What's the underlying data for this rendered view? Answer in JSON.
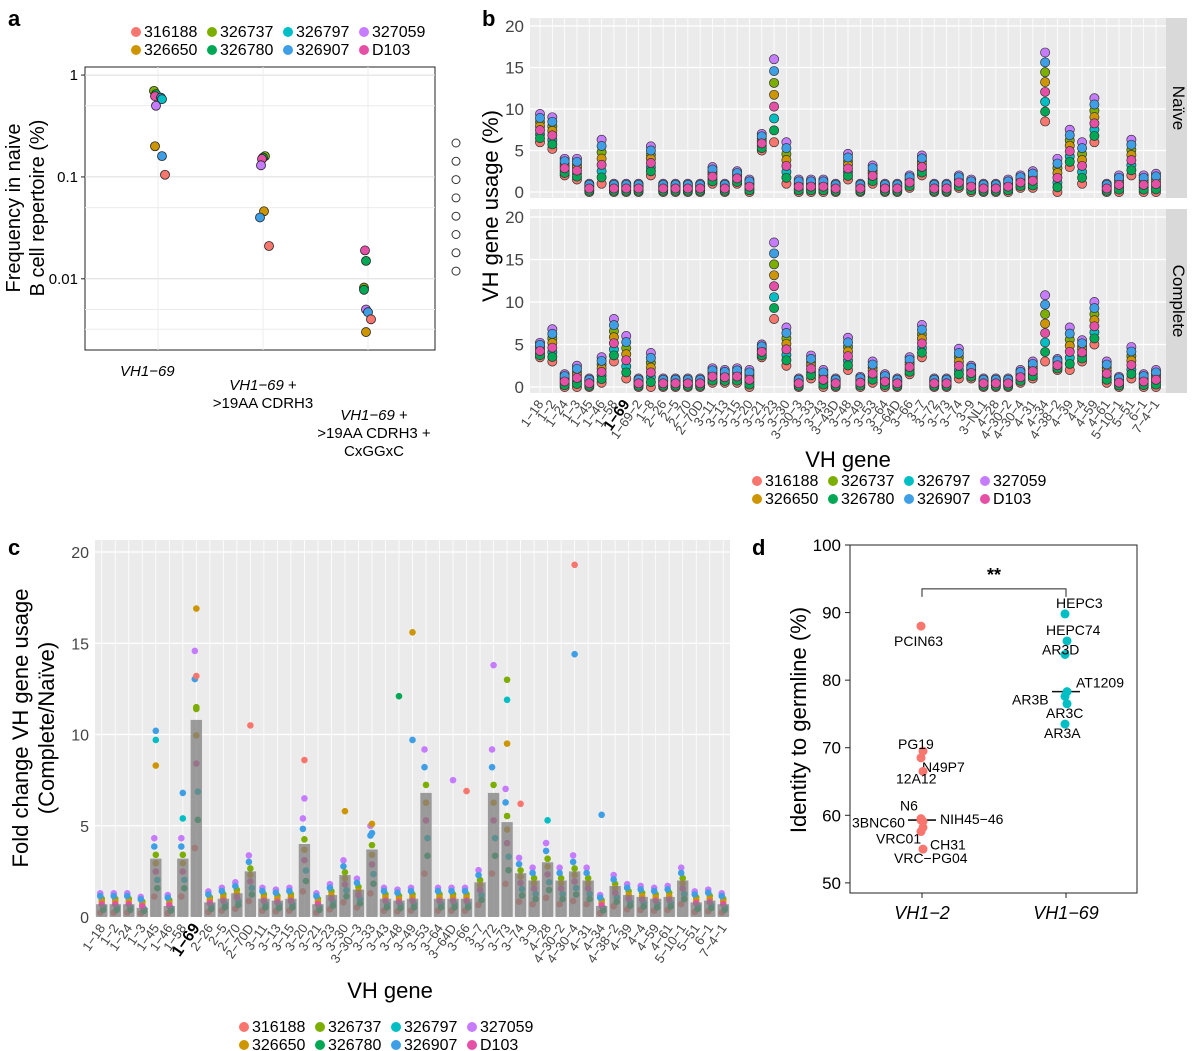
{
  "panel_labels": {
    "a": "a",
    "b": "b",
    "c": "c",
    "d": "d"
  },
  "donors": [
    {
      "id": "316188",
      "color": "#F8766D"
    },
    {
      "id": "326737",
      "color": "#7CAE00"
    },
    {
      "id": "326797",
      "color": "#00BFC4"
    },
    {
      "id": "327059",
      "color": "#C77CFF"
    },
    {
      "id": "326650",
      "color": "#CD9600"
    },
    {
      "id": "326780",
      "color": "#00A855"
    },
    {
      "id": "326907",
      "color": "#3E9FE6"
    },
    {
      "id": "D103",
      "color": "#E64FA6"
    }
  ],
  "chart_data": [
    {
      "panel": "a",
      "type": "scatter",
      "yscale": "log",
      "ylabel_line1": "Frequency in naive",
      "ylabel_line2": "B cell repertoire (%)",
      "ylim": [
        0.002,
        1.2
      ],
      "yticks": [
        {
          "v": 1,
          "label": "1"
        },
        {
          "v": 0.1,
          "label": "0.1"
        },
        {
          "v": 0.01,
          "label": "0.01"
        }
      ],
      "categories": [
        {
          "lines": [
            {
              "italic": "VH1−69",
              "rest": ""
            }
          ]
        },
        {
          "lines": [
            {
              "italic": "VH1−69",
              "rest": " +"
            },
            {
              "italic": "",
              "rest": ">19AA CDRH3"
            }
          ]
        },
        {
          "lines": [
            {
              "italic": "VH1−69",
              "rest": " +"
            },
            {
              "italic": "",
              "rest": ">19AA CDRH3 +"
            },
            {
              "italic": "",
              "rest": "CxGGxC"
            }
          ]
        }
      ],
      "points": [
        {
          "cat": 0,
          "dx": -4,
          "y": 0.7,
          "donor": "326737"
        },
        {
          "cat": 0,
          "dx": -2,
          "y": 0.65,
          "donor": "326780"
        },
        {
          "cat": 0,
          "dx": -3,
          "y": 0.62,
          "donor": "D103"
        },
        {
          "cat": 0,
          "dx": 3,
          "y": 0.6,
          "donor": "326907"
        },
        {
          "cat": 0,
          "dx": 4,
          "y": 0.58,
          "donor": "326797"
        },
        {
          "cat": 0,
          "dx": -2,
          "y": 0.5,
          "donor": "327059"
        },
        {
          "cat": 0,
          "dx": -3,
          "y": 0.2,
          "donor": "326650"
        },
        {
          "cat": 0,
          "dx": 4,
          "y": 0.16,
          "donor": "326907"
        },
        {
          "cat": 0,
          "dx": 7,
          "y": 0.105,
          "donor": "316188"
        },
        {
          "cat": 1,
          "dx": 2,
          "y": 0.16,
          "donor": "326737"
        },
        {
          "cat": 1,
          "dx": 0,
          "y": 0.155,
          "donor": "326780"
        },
        {
          "cat": 1,
          "dx": -1,
          "y": 0.15,
          "donor": "D103"
        },
        {
          "cat": 1,
          "dx": -2,
          "y": 0.13,
          "donor": "327059"
        },
        {
          "cat": 1,
          "dx": 1,
          "y": 0.046,
          "donor": "326650"
        },
        {
          "cat": 1,
          "dx": -3,
          "y": 0.04,
          "donor": "326907"
        },
        {
          "cat": 1,
          "dx": 6,
          "y": 0.021,
          "donor": "316188"
        },
        {
          "cat": 2,
          "dx": -3,
          "y": 0.019,
          "donor": "D103"
        },
        {
          "cat": 2,
          "dx": -2,
          "y": 0.015,
          "donor": "326780"
        },
        {
          "cat": 2,
          "dx": -4,
          "y": 0.0082,
          "donor": "326737"
        },
        {
          "cat": 2,
          "dx": -4,
          "y": 0.0078,
          "donor": "326780"
        },
        {
          "cat": 2,
          "dx": -2,
          "y": 0.005,
          "donor": "327059"
        },
        {
          "cat": 2,
          "dx": 0,
          "y": 0.0047,
          "donor": "326907"
        },
        {
          "cat": 2,
          "dx": 3,
          "y": 0.004,
          "donor": "316188"
        },
        {
          "cat": 2,
          "dx": -2,
          "y": 0.003,
          "donor": "326650"
        }
      ]
    },
    {
      "panel": "b",
      "type": "scatter",
      "ylabel": "VH gene usage (%)",
      "xlabel": "VH gene",
      "ylim": [
        0,
        20
      ],
      "yticks": [
        0,
        5,
        10,
        15,
        20
      ],
      "facets": [
        "Naïve",
        "Complete"
      ],
      "genes": [
        "1−18",
        "1−2",
        "1−24",
        "1−3",
        "1−45",
        "1−46",
        "1−58",
        "1−69",
        "1−69−2",
        "1−8",
        "2−26",
        "2−5",
        "2−70",
        "2−70D",
        "3−11",
        "3−13",
        "3−15",
        "3−20",
        "3−21",
        "3−23",
        "3−30",
        "3−30−3",
        "3−33",
        "3−43",
        "3−43D",
        "3−48",
        "3−49",
        "3−53",
        "3−64",
        "3−64D",
        "3−66",
        "3−7",
        "3−72",
        "3−73",
        "3−74",
        "3−9",
        "3−NL1",
        "4−28",
        "4−30−2",
        "4−30−4",
        "4−31",
        "4−34",
        "4−38−2",
        "4−39",
        "4−4",
        "4−59",
        "4−61",
        "5−10−1",
        "5−51",
        "6−1",
        "7−4−1"
      ],
      "bold_gene": "1−69",
      "naive": [
        [
          6,
          9.4
        ],
        [
          5.2,
          9
        ],
        [
          2,
          4
        ],
        [
          1.5,
          4
        ],
        [
          0,
          1
        ],
        [
          1,
          6.3
        ],
        [
          0,
          1
        ],
        [
          0,
          1
        ],
        [
          0,
          1
        ],
        [
          2,
          5.5
        ],
        [
          0,
          1
        ],
        [
          0,
          1
        ],
        [
          0,
          1
        ],
        [
          0,
          1
        ],
        [
          1,
          3
        ],
        [
          0,
          1
        ],
        [
          1,
          2.5
        ],
        [
          0,
          1.5
        ],
        [
          5,
          7
        ],
        [
          6,
          16
        ],
        [
          1,
          6
        ],
        [
          0,
          1.5
        ],
        [
          0,
          1.5
        ],
        [
          0,
          1.5
        ],
        [
          0,
          1
        ],
        [
          1.5,
          4.6
        ],
        [
          0,
          1
        ],
        [
          1,
          3.2
        ],
        [
          0,
          1
        ],
        [
          0,
          1
        ],
        [
          0.5,
          2
        ],
        [
          2,
          4.4
        ],
        [
          0,
          1
        ],
        [
          0,
          1
        ],
        [
          0.5,
          2
        ],
        [
          0,
          1.5
        ],
        [
          0,
          1
        ],
        [
          0,
          1
        ],
        [
          0,
          1.5
        ],
        [
          0.5,
          2
        ],
        [
          0.5,
          2.5
        ],
        [
          8.5,
          16.8
        ],
        [
          0,
          4
        ],
        [
          3,
          7.5
        ],
        [
          1,
          6
        ],
        [
          6,
          11.3
        ],
        [
          0,
          1
        ],
        [
          0,
          2
        ],
        [
          2,
          6.3
        ],
        [
          0,
          2
        ],
        [
          0,
          2.2
        ]
      ],
      "complete": [
        [
          3.5,
          5.2
        ],
        [
          3,
          6.8
        ],
        [
          0,
          1.5
        ],
        [
          0,
          2.5
        ],
        [
          0,
          1
        ],
        [
          0.5,
          3.5
        ],
        [
          3,
          8
        ],
        [
          1,
          6
        ],
        [
          0,
          1
        ],
        [
          0,
          4
        ],
        [
          0,
          1
        ],
        [
          0,
          1
        ],
        [
          0,
          1
        ],
        [
          0,
          1
        ],
        [
          0.5,
          2.2
        ],
        [
          0.5,
          2
        ],
        [
          0.5,
          2.2
        ],
        [
          0,
          2
        ],
        [
          3.5,
          5
        ],
        [
          8,
          17
        ],
        [
          2.5,
          7
        ],
        [
          0,
          1
        ],
        [
          1,
          3.7
        ],
        [
          0,
          2
        ],
        [
          0,
          1
        ],
        [
          2,
          5.8
        ],
        [
          0,
          1.2
        ],
        [
          0.5,
          3
        ],
        [
          0,
          1.5
        ],
        [
          0,
          1
        ],
        [
          1.5,
          3.5
        ],
        [
          3.5,
          7.3
        ],
        [
          0,
          1
        ],
        [
          0,
          1
        ],
        [
          1,
          4.5
        ],
        [
          1,
          2.5
        ],
        [
          0,
          1
        ],
        [
          0,
          1
        ],
        [
          0,
          1
        ],
        [
          0.5,
          2
        ],
        [
          1,
          3
        ],
        [
          3,
          10.8
        ],
        [
          2,
          3.3
        ],
        [
          2,
          7
        ],
        [
          3,
          5.5
        ],
        [
          5,
          10
        ],
        [
          0.5,
          3
        ],
        [
          0,
          1.2
        ],
        [
          1,
          4.7
        ],
        [
          0,
          1.5
        ],
        [
          0,
          2
        ]
      ],
      "legend_position": "bottom"
    },
    {
      "panel": "c",
      "type": "bar",
      "ylabel_line1": "Fold change VH gene usage",
      "ylabel_line2": "(Complete/Naïve)",
      "xlabel": "VH gene",
      "ylim": [
        0,
        20
      ],
      "yticks": [
        0,
        5,
        10,
        15,
        20
      ],
      "categories": [
        "1−18",
        "1−2",
        "1−24",
        "1−3",
        "1−45",
        "1−46",
        "1−58",
        "1−69",
        "2−26",
        "2−5",
        "2−70",
        "2−70D",
        "3−11",
        "3−13",
        "3−15",
        "3−20",
        "3−21",
        "3−23",
        "3−30",
        "3−30−3",
        "3−33",
        "3−43",
        "3−48",
        "3−49",
        "3−53",
        "3−64",
        "3−64D",
        "3−66",
        "3−7",
        "3−72",
        "3−73",
        "3−74",
        "3−9",
        "4−28",
        "4−30−2",
        "4−30−4",
        "4−31",
        "4−34",
        "4−38−2",
        "4−39",
        "4−4",
        "4−59",
        "4−61",
        "5−10−1",
        "5−51",
        "6−1",
        "7−4−1"
      ],
      "bold_category": "1−69",
      "values": [
        0.7,
        0.7,
        0.7,
        0.5,
        3.2,
        0.6,
        3.2,
        10.8,
        0.8,
        1.0,
        1.3,
        2.5,
        1.0,
        0.9,
        1.0,
        4.0,
        0.7,
        1.2,
        2.3,
        1.5,
        3.7,
        1.0,
        0.9,
        1.0,
        6.8,
        1.0,
        1.0,
        1.0,
        1.9,
        6.8,
        5.2,
        2.4,
        2.0,
        3.0,
        2.0,
        2.5,
        2.0,
        0.6,
        1.7,
        1.2,
        1.1,
        1.0,
        1.1,
        2.0,
        0.8,
        0.9,
        0.7
      ],
      "outliers": [
        {
          "cat": 4,
          "y": 10.2,
          "donor": "326907"
        },
        {
          "cat": 4,
          "y": 9.7,
          "donor": "326797"
        },
        {
          "cat": 4,
          "y": 8.3,
          "donor": "326650"
        },
        {
          "cat": 6,
          "y": 6.8,
          "donor": "326907"
        },
        {
          "cat": 6,
          "y": 5.4,
          "donor": "326797"
        },
        {
          "cat": 7,
          "y": 16.9,
          "donor": "326650"
        },
        {
          "cat": 7,
          "y": 13.2,
          "donor": "316188"
        },
        {
          "cat": 7,
          "y": 11.4,
          "donor": "326737"
        },
        {
          "cat": 11,
          "y": 10.5,
          "donor": "316188"
        },
        {
          "cat": 15,
          "y": 8.6,
          "donor": "316188"
        },
        {
          "cat": 15,
          "y": 6.5,
          "donor": "327059"
        },
        {
          "cat": 18,
          "y": 5.8,
          "donor": "326650"
        },
        {
          "cat": 20,
          "y": 5.1,
          "donor": "326650"
        },
        {
          "cat": 20,
          "y": 4.6,
          "donor": "326907"
        },
        {
          "cat": 22,
          "y": 12.1,
          "donor": "326780"
        },
        {
          "cat": 23,
          "y": 15.6,
          "donor": "326650"
        },
        {
          "cat": 23,
          "y": 9.7,
          "donor": "326907"
        },
        {
          "cat": 26,
          "y": 7.5,
          "donor": "327059"
        },
        {
          "cat": 27,
          "y": 6.9,
          "donor": "316188"
        },
        {
          "cat": 29,
          "y": 13.8,
          "donor": "327059"
        },
        {
          "cat": 30,
          "y": 13.0,
          "donor": "326737"
        },
        {
          "cat": 30,
          "y": 11.9,
          "donor": "326797"
        },
        {
          "cat": 30,
          "y": 9.5,
          "donor": "326650"
        },
        {
          "cat": 31,
          "y": 6.2,
          "donor": "316188"
        },
        {
          "cat": 33,
          "y": 5.3,
          "donor": "326797"
        },
        {
          "cat": 35,
          "y": 19.3,
          "donor": "316188"
        },
        {
          "cat": 35,
          "y": 14.4,
          "donor": "326907"
        },
        {
          "cat": 37,
          "y": 5.6,
          "donor": "326907"
        }
      ],
      "legend_position": "bottom"
    },
    {
      "panel": "d",
      "type": "scatter",
      "ylabel": "Identity to germline (%)",
      "ylim": [
        48.5,
        100
      ],
      "yticks": [
        50,
        60,
        70,
        80,
        90,
        100
      ],
      "categories": [
        "VH1−2",
        "VH1−69"
      ],
      "significance": "**",
      "groups": [
        {
          "cat": 0,
          "color": "#F8766D",
          "median": 59.3,
          "points": [
            {
              "label": "PCIN63",
              "y": 88
            },
            {
              "label": "PG19",
              "y": 69.5
            },
            {
              "label": "N49P7",
              "y": 68.5
            },
            {
              "label": "12A12",
              "y": 66.5
            },
            {
              "label": "N6",
              "y": 59.5
            },
            {
              "label": "3BNC60",
              "y": 59.1
            },
            {
              "label": "NIH45−46",
              "y": 59.3
            },
            {
              "label": "VRC01",
              "y": 58.2
            },
            {
              "label": "CH31",
              "y": 57.6
            },
            {
              "label": "VRC−PG04",
              "y": 55
            }
          ]
        },
        {
          "cat": 1,
          "color": "#00BFC4",
          "median": 78.3,
          "points": [
            {
              "label": "HEPC3",
              "y": 89.8
            },
            {
              "label": "HEPC74",
              "y": 85.8
            },
            {
              "label": "AR3D",
              "y": 83.8
            },
            {
              "label": "AT1209",
              "y": 78.3
            },
            {
              "label": "AR3B",
              "y": 77.6
            },
            {
              "label": "AR3C",
              "y": 76.5
            },
            {
              "label": "AR3A",
              "y": 73.5
            }
          ]
        }
      ]
    }
  ]
}
